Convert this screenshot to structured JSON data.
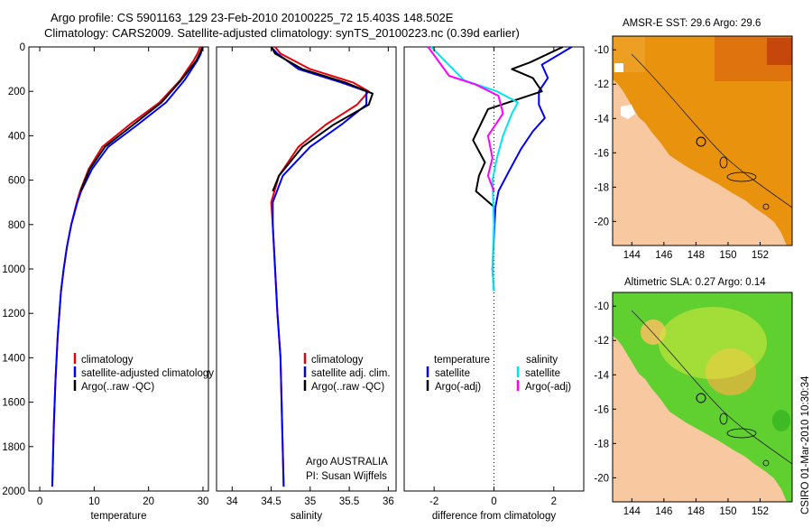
{
  "title": {
    "line1": "Argo profile: CS 5901163_129 23-Feb-2010 20100225_72 15.403S 148.502E",
    "line2": "Climatology: CARS2009. Satellite-adjusted climatology: synTS_20100223.nc (0.39d earlier)"
  },
  "credit": "CSIRO 01-Mar-2010 10:30:34",
  "colors": {
    "climatology": "#e8000b",
    "satellite": "#0000ff",
    "argo": "#000000",
    "sat_salinity": "#00e5ee",
    "argo_salinity": "#ff00ff"
  },
  "chart_data": [
    {
      "type": "line",
      "id": "temperature",
      "xlabel": "temperature",
      "ylabel": "",
      "xlim": [
        -2,
        31
      ],
      "ylim": [
        2000,
        0
      ],
      "xticks": [
        0,
        10,
        20,
        30
      ],
      "xtick_labels": [
        "0",
        "10",
        "20",
        "30"
      ],
      "yticks": [
        0,
        200,
        400,
        600,
        800,
        1000,
        1200,
        1400,
        1600,
        1800,
        2000
      ],
      "ytick_labels": [
        "0",
        "200",
        "400",
        "600",
        "800",
        "1000",
        "1200",
        "1400",
        "1600",
        "1800",
        "2000"
      ],
      "series": [
        {
          "name": "climatology",
          "color": "red",
          "x": [
            29.5,
            29.0,
            28.3,
            25.8,
            22.0,
            16.5,
            11.5,
            9.0,
            7.4,
            6.8,
            5.8,
            5.0,
            4.4,
            3.9,
            3.3,
            2.9,
            2.6,
            2.3
          ],
          "y": [
            0,
            30,
            60,
            150,
            250,
            350,
            450,
            550,
            650,
            700,
            800,
            900,
            1000,
            1100,
            1300,
            1500,
            1700,
            1980
          ]
        },
        {
          "name": "satellite-adjusted climatology",
          "color": "blue",
          "x": [
            29.9,
            29.6,
            29.0,
            26.6,
            23.2,
            18.0,
            12.6,
            9.6,
            7.6,
            6.9,
            5.8,
            5.0,
            4.4,
            3.9,
            3.3,
            2.9,
            2.6,
            2.3
          ],
          "y": [
            0,
            30,
            60,
            150,
            250,
            350,
            450,
            550,
            650,
            700,
            800,
            900,
            1000,
            1100,
            1300,
            1500,
            1700,
            1980
          ]
        },
        {
          "name": "Argo(..raw -QC)",
          "color": "black",
          "x": [
            29.9,
            29.4,
            28.8,
            26.0,
            22.4,
            17.2,
            12.0,
            9.2,
            7.5
          ],
          "y": [
            0,
            30,
            60,
            150,
            250,
            350,
            450,
            550,
            650
          ]
        }
      ],
      "legend": {
        "position": "bottom-center",
        "labels": [
          "climatology",
          "satellite-adjusted climatology",
          "Argo(..raw -QC)"
        ]
      }
    },
    {
      "type": "line",
      "id": "salinity",
      "xlabel": "salinity",
      "xlim": [
        33.8,
        36.1
      ],
      "ylim": [
        2000,
        0
      ],
      "xticks": [
        34,
        34.5,
        35,
        35.5,
        36
      ],
      "xtick_labels": [
        "34",
        "34.5",
        "35",
        "35.5",
        "36"
      ],
      "series": [
        {
          "name": "climatology",
          "color": "red",
          "x": [
            34.55,
            34.62,
            35.0,
            35.55,
            35.75,
            35.6,
            35.2,
            34.85,
            34.6,
            34.5,
            34.52,
            34.55,
            34.58,
            34.62,
            34.64,
            34.66
          ],
          "y": [
            0,
            30,
            100,
            160,
            200,
            260,
            350,
            450,
            580,
            700,
            800,
            1000,
            1200,
            1400,
            1700,
            1980
          ]
        },
        {
          "name": "satellite adj. clim.",
          "color": "blue",
          "x": [
            34.5,
            34.58,
            34.85,
            35.4,
            35.72,
            35.72,
            35.4,
            35.0,
            34.65,
            34.52,
            34.52,
            34.55,
            34.58,
            34.62,
            34.64,
            34.66
          ],
          "y": [
            0,
            30,
            100,
            160,
            200,
            260,
            350,
            450,
            580,
            700,
            800,
            1000,
            1200,
            1400,
            1700,
            1980
          ]
        },
        {
          "name": "Argo(..raw -QC)",
          "color": "black",
          "x": [
            34.5,
            34.55,
            34.9,
            35.45,
            35.8,
            35.75,
            35.3,
            34.9,
            34.6,
            34.52
          ],
          "y": [
            0,
            30,
            100,
            160,
            210,
            260,
            350,
            450,
            580,
            650
          ]
        }
      ],
      "legend": {
        "position": "bottom-center",
        "labels": [
          "climatology",
          "satellite adj. clim.",
          "Argo(..raw -QC)"
        ]
      },
      "annotation": {
        "line1": "Argo AUSTRALIA",
        "line2": "PI: Susan Wijffels"
      }
    },
    {
      "type": "line",
      "id": "difference",
      "xlabel": "difference from climatology",
      "xlim": [
        -3,
        3
      ],
      "ylim": [
        2000,
        0
      ],
      "xticks": [
        -2,
        0,
        2
      ],
      "xtick_labels": [
        "-2",
        "0",
        "2"
      ],
      "series": [
        {
          "name": "temperature satellite",
          "color": "blue",
          "x": [
            2.6,
            1.6,
            1.8,
            1.5,
            1.5,
            1.7,
            1.3,
            0.9,
            0.5,
            0.15,
            0.05,
            0.0,
            -0.05,
            0.0
          ],
          "y": [
            0,
            80,
            140,
            200,
            260,
            320,
            380,
            460,
            560,
            650,
            720,
            850,
            1000,
            1100
          ]
        },
        {
          "name": "temperature Argo(-adj)",
          "color": "black",
          "x": [
            2.3,
            1.2,
            0.6,
            1.3,
            1.6,
            -0.2,
            -0.7,
            -0.3,
            -0.5,
            -0.6,
            0.0
          ],
          "y": [
            0,
            70,
            100,
            140,
            200,
            280,
            420,
            520,
            580,
            650,
            720
          ]
        },
        {
          "name": "salinity satellite",
          "color": "cyan",
          "x": [
            -2.1,
            -1.0,
            0.1,
            0.8,
            0.6,
            0.3,
            0.1,
            -0.05,
            0.0,
            -0.05,
            0.0
          ],
          "y": [
            0,
            150,
            200,
            250,
            300,
            400,
            500,
            600,
            800,
            1000,
            1100
          ]
        },
        {
          "name": "salinity Argo(-adj)",
          "color": "magenta",
          "x": [
            -2.2,
            -1.5,
            -0.6,
            0.15,
            0.3,
            -0.2,
            -0.05,
            -0.2,
            0.0
          ],
          "y": [
            0,
            130,
            170,
            220,
            300,
            400,
            500,
            580,
            650
          ]
        }
      ],
      "zero_line": 0,
      "legend": {
        "temperature_header": "temperature",
        "salinity_header": "salinity",
        "temperature_labels": [
          "satellite",
          "Argo(-adj)"
        ],
        "salinity_labels": [
          "satellite",
          "Argo(-adj)"
        ]
      }
    }
  ],
  "maps": [
    {
      "id": "sst",
      "title": "AMSR-E SST: 29.6  Argo: 29.6",
      "xticks": [
        144,
        146,
        148,
        150,
        152
      ],
      "xtick_labels": [
        "144",
        "146",
        "148",
        "150",
        "152"
      ],
      "yticks": [
        -10,
        -12,
        -14,
        -16,
        -18,
        -20
      ],
      "ytick_labels": [
        "-10",
        "-12",
        "-14",
        "-16",
        "-18",
        "-20"
      ]
    },
    {
      "id": "sla",
      "title": "Altimetric SLA: 0.27  Argo: 0.14",
      "xticks": [
        144,
        146,
        148,
        150,
        152
      ],
      "xtick_labels": [
        "144",
        "146",
        "148",
        "150",
        "152"
      ],
      "yticks": [
        -10,
        -12,
        -14,
        -16,
        -18,
        -20
      ],
      "ytick_labels": [
        "-10",
        "-12",
        "-14",
        "-16",
        "-18",
        "-20"
      ]
    }
  ]
}
